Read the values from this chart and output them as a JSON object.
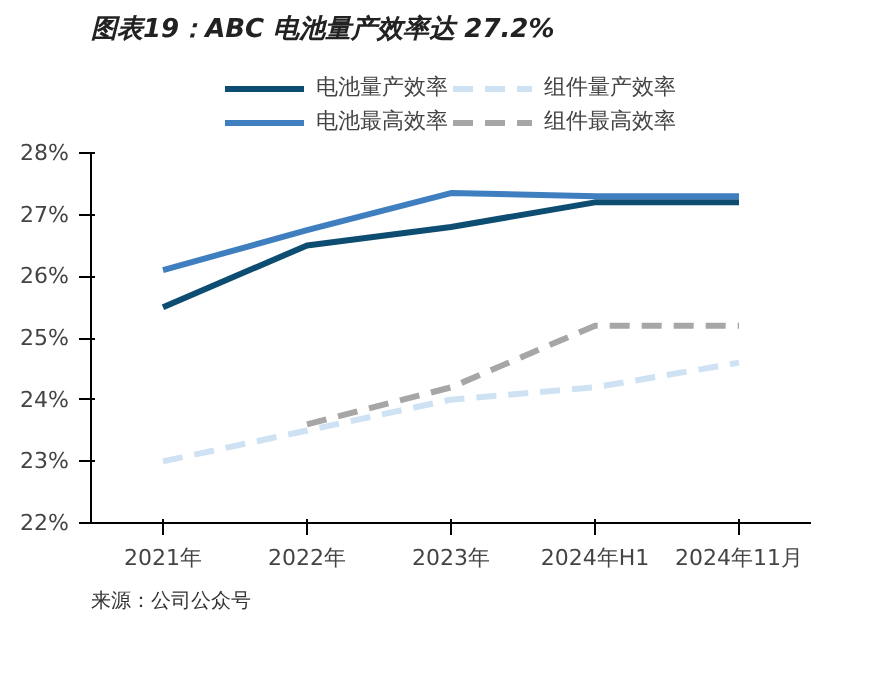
{
  "chart_data": {
    "type": "line",
    "title": "图表19：ABC 电池量产效率达 27.2%",
    "categories": [
      "2021年",
      "2022年",
      "2023年",
      "2024年H1",
      "2024年11月"
    ],
    "series": [
      {
        "name": "电池量产效率",
        "color": "#0e4d72",
        "values": [
          25.5,
          26.5,
          26.8,
          27.2,
          27.2
        ],
        "line_style": "solid"
      },
      {
        "name": "电池最高效率",
        "color": "#3f7fc0",
        "values": [
          26.1,
          26.75,
          27.35,
          27.3,
          27.3
        ],
        "line_style": "solid"
      },
      {
        "name": "组件量产效率",
        "color": "#cfe2f3",
        "values": [
          23.0,
          23.5,
          24.0,
          24.2,
          24.6
        ],
        "line_style": "dashed"
      },
      {
        "name": "组件最高效率",
        "color": "#a6a6a6",
        "values": [
          null,
          23.6,
          24.2,
          25.2,
          25.2
        ],
        "line_style": "dashed"
      }
    ],
    "ylim": [
      22,
      28
    ],
    "yticks": [
      {
        "value": 22,
        "label": "22%"
      },
      {
        "value": 23,
        "label": "23%"
      },
      {
        "value": 24,
        "label": "24%"
      },
      {
        "value": 25,
        "label": "25%"
      },
      {
        "value": 26,
        "label": "26%"
      },
      {
        "value": 27,
        "label": "27%"
      },
      {
        "value": 28,
        "label": "28%"
      }
    ],
    "grid": false,
    "legend": "top",
    "marker": "none",
    "annotations": [
      "来源：公司公众号"
    ]
  }
}
